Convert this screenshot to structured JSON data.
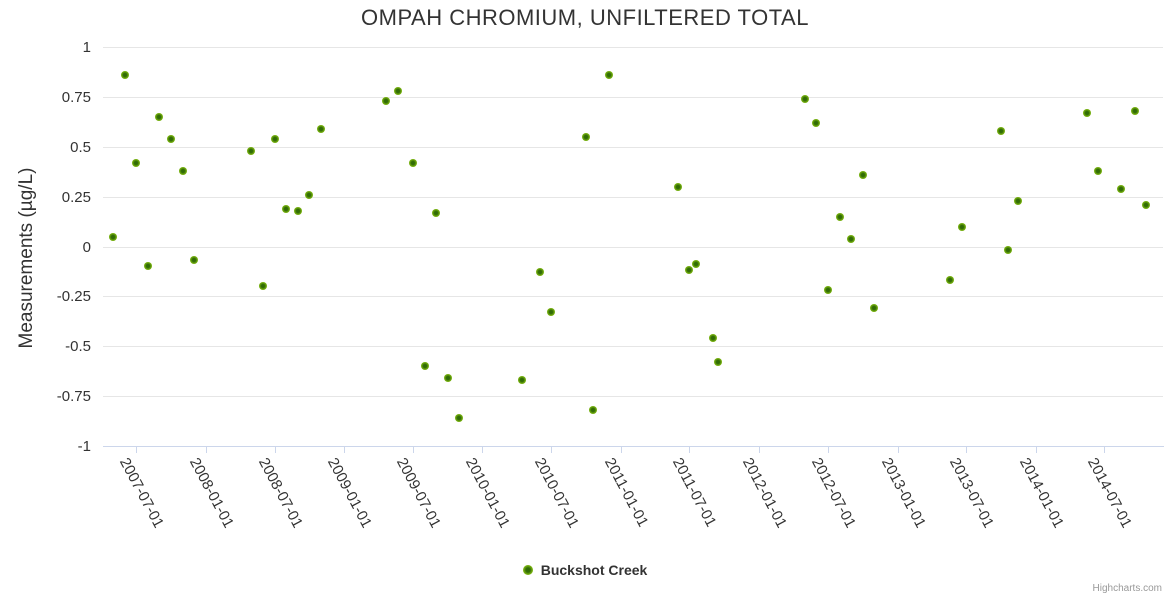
{
  "title": "OMPAH CHROMIUM, UNFILTERED TOTAL",
  "credits": "Highcharts.com",
  "legend": {
    "label": "Buckshot Creek"
  },
  "y_axis": {
    "title": "Measurements (µg/L)",
    "tick_labels": [
      "1",
      "0.75",
      "0.5",
      "0.25",
      "0",
      "-0.25",
      "-0.5",
      "-0.75",
      "-1"
    ]
  },
  "x_axis": {
    "tick_labels": [
      "2007-07-01",
      "2008-01-01",
      "2008-07-01",
      "2009-01-01",
      "2009-07-01",
      "2010-01-01",
      "2010-07-01",
      "2011-01-01",
      "2011-07-01",
      "2012-01-01",
      "2012-07-01",
      "2013-01-01",
      "2013-07-01",
      "2014-01-01",
      "2014-07-01"
    ]
  },
  "colors": {
    "marker_fill": "#76b00f",
    "marker_core": "#2e6b04",
    "grid_line": "#e6e6e6",
    "axis_line": "#ccd6eb",
    "text": "#333333",
    "credits_text": "#999999"
  },
  "chart_data": {
    "type": "scatter",
    "title": "OMPAH CHROMIUM, UNFILTERED TOTAL",
    "xlabel": "",
    "ylabel": "Measurements (µg/L)",
    "ylim": [
      -1,
      1
    ],
    "y_ticks": [
      1,
      0.75,
      0.5,
      0.25,
      0,
      -0.25,
      -0.5,
      -0.75,
      -1
    ],
    "xlim": [
      "2007-04-05",
      "2014-12-03"
    ],
    "grid": "horizontal",
    "legend_position": "bottom-center",
    "series": [
      {
        "name": "Buckshot Creek",
        "color": "#76b00f",
        "points": [
          [
            "2007-05-01",
            0.05
          ],
          [
            "2007-06-01",
            0.86
          ],
          [
            "2007-07-01",
            0.42
          ],
          [
            "2007-08-01",
            -0.1
          ],
          [
            "2007-09-01",
            0.65
          ],
          [
            "2007-10-01",
            0.54
          ],
          [
            "2007-11-01",
            0.38
          ],
          [
            "2007-12-01",
            -0.07
          ],
          [
            "2008-05-01",
            0.48
          ],
          [
            "2008-06-01",
            -0.2
          ],
          [
            "2008-07-01",
            0.54
          ],
          [
            "2008-08-01",
            0.19
          ],
          [
            "2008-09-01",
            0.18
          ],
          [
            "2008-10-01",
            0.26
          ],
          [
            "2008-11-01",
            0.59
          ],
          [
            "2009-04-20",
            0.73
          ],
          [
            "2009-05-22",
            0.78
          ],
          [
            "2009-07-01",
            0.42
          ],
          [
            "2009-08-01",
            -0.6
          ],
          [
            "2009-09-01",
            0.17
          ],
          [
            "2009-10-01",
            -0.66
          ],
          [
            "2009-11-01",
            -0.86
          ],
          [
            "2010-04-15",
            -0.67
          ],
          [
            "2010-06-01",
            -0.13
          ],
          [
            "2010-07-01",
            -0.33
          ],
          [
            "2010-10-01",
            0.55
          ],
          [
            "2010-10-20",
            -0.82
          ],
          [
            "2010-12-01",
            0.86
          ],
          [
            "2011-06-01",
            0.3
          ],
          [
            "2011-07-01",
            -0.12
          ],
          [
            "2011-07-20",
            -0.09
          ],
          [
            "2011-09-01",
            -0.46
          ],
          [
            "2011-09-15",
            -0.58
          ],
          [
            "2012-05-01",
            0.74
          ],
          [
            "2012-06-01",
            0.62
          ],
          [
            "2012-07-01",
            -0.22
          ],
          [
            "2012-08-01",
            0.15
          ],
          [
            "2012-09-01",
            0.04
          ],
          [
            "2012-10-01",
            0.36
          ],
          [
            "2012-11-01",
            -0.31
          ],
          [
            "2013-05-20",
            -0.17
          ],
          [
            "2013-06-20",
            0.1
          ],
          [
            "2013-10-01",
            0.58
          ],
          [
            "2013-10-20",
            -0.02
          ],
          [
            "2013-11-15",
            0.23
          ],
          [
            "2014-05-15",
            0.67
          ],
          [
            "2014-06-15",
            0.38
          ],
          [
            "2014-08-15",
            0.29
          ],
          [
            "2014-09-20",
            0.68
          ],
          [
            "2014-10-20",
            0.21
          ]
        ]
      }
    ]
  }
}
